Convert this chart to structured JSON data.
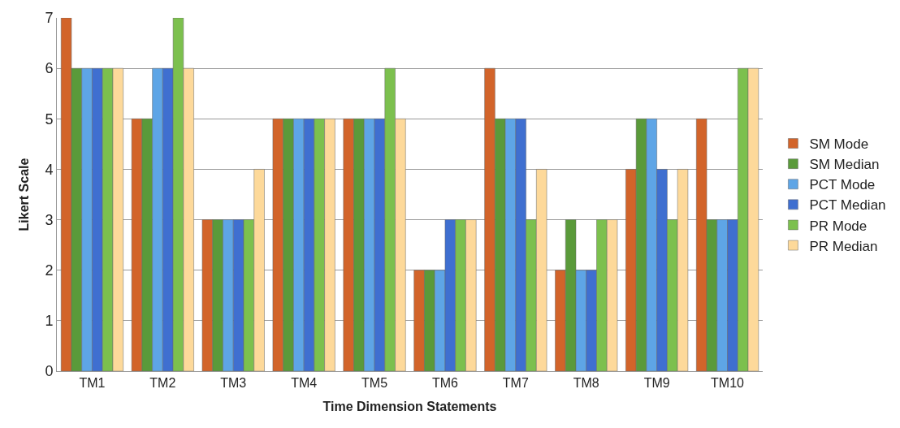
{
  "chart_data": {
    "type": "bar",
    "xlabel": "Time Dimension Statements",
    "ylabel": "Likert Scale",
    "categories": [
      "TM1",
      "TM2",
      "TM3",
      "TM4",
      "TM5",
      "TM6",
      "TM7",
      "TM8",
      "TM9",
      "TM10"
    ],
    "series": [
      {
        "name": "SM Mode",
        "color": "#d2642a",
        "values": [
          7,
          5,
          3,
          5,
          5,
          2,
          6,
          2,
          4,
          5
        ]
      },
      {
        "name": "SM Median",
        "color": "#5a9a3a",
        "values": [
          6,
          5,
          3,
          5,
          5,
          2,
          5,
          3,
          5,
          3
        ]
      },
      {
        "name": "PCT Mode",
        "color": "#5ea5e6",
        "values": [
          6,
          6,
          3,
          5,
          5,
          2,
          5,
          2,
          5,
          3
        ]
      },
      {
        "name": "PCT Median",
        "color": "#3f6fd0",
        "values": [
          6,
          6,
          3,
          5,
          5,
          3,
          5,
          2,
          4,
          3
        ]
      },
      {
        "name": "PR Mode",
        "color": "#7cc04e",
        "values": [
          6,
          7,
          3,
          5,
          6,
          3,
          3,
          3,
          3,
          6
        ]
      },
      {
        "name": "PR Median",
        "color": "#fdd99a",
        "values": [
          6,
          6,
          4,
          5,
          5,
          3,
          4,
          3,
          4,
          6
        ]
      }
    ],
    "ylim": [
      0,
      7
    ],
    "yticks": [
      0,
      1,
      2,
      3,
      4,
      5,
      6,
      7
    ],
    "grid": "y",
    "legend": "right"
  }
}
